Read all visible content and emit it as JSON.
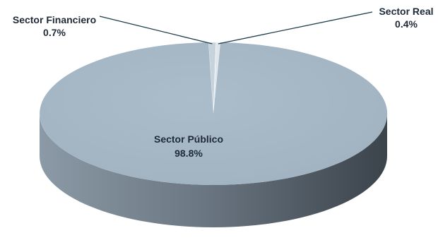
{
  "chart_data": {
    "type": "pie",
    "style": "3d",
    "categories": [
      "Sector Público",
      "Sector Financiero",
      "Sector Real"
    ],
    "values": [
      98.8,
      0.7,
      0.4
    ],
    "value_labels": [
      "98.8%",
      "0.7%",
      "0.4%"
    ],
    "colors": {
      "Sector Público": "#a6b8c6",
      "Sector Financiero": "#c7d3dc",
      "Sector Real": "#dfe6ec",
      "side_dark": "#3b434b",
      "side_light": "#9aa5ae",
      "leader": "#1f3d4a"
    },
    "legend": "none"
  }
}
